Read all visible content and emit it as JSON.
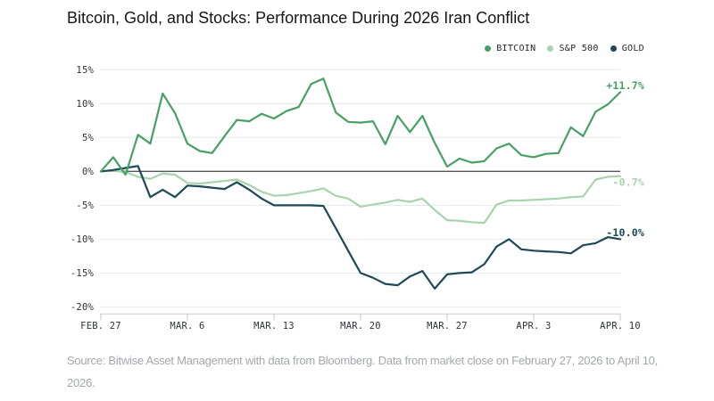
{
  "title": "Bitcoin, Gold, and Stocks: Performance During 2026 Iran Conflict",
  "legend": {
    "items": [
      {
        "label": "BITCOIN",
        "color": "#47a065"
      },
      {
        "label": "S&P 500",
        "color": "#a9d3ae"
      },
      {
        "label": "GOLD",
        "color": "#1e4956"
      }
    ]
  },
  "source_note": "Source: Bitwise Asset Management with data from Bloomberg. Data from market close on February 27, 2026 to April 10, 2026.",
  "chart_data": {
    "type": "line",
    "title": "Bitcoin, Gold, and Stocks: Performance During 2026 Iran Conflict",
    "xlabel": "",
    "ylabel": "",
    "ylim": [
      -20,
      15
    ],
    "grid": true,
    "legend_position": "top-right",
    "x": [
      "FEB 27",
      "FEB 28",
      "MAR 1",
      "MAR 2",
      "MAR 3",
      "MAR 4",
      "MAR 5",
      "MAR 6",
      "MAR 7",
      "MAR 8",
      "MAR 9",
      "MAR 10",
      "MAR 11",
      "MAR 12",
      "MAR 13",
      "MAR 14",
      "MAR 15",
      "MAR 16",
      "MAR 17",
      "MAR 18",
      "MAR 19",
      "MAR 20",
      "MAR 21",
      "MAR 22",
      "MAR 23",
      "MAR 24",
      "MAR 25",
      "MAR 26",
      "MAR 27",
      "MAR 28",
      "MAR 29",
      "MAR 30",
      "MAR 31",
      "APR 1",
      "APR 2",
      "APR 3",
      "APR 4",
      "APR 5",
      "APR 6",
      "APR 7",
      "APR 8",
      "APR 9",
      "APR 10"
    ],
    "x_tick_labels": [
      "FEB. 27",
      "MAR. 6",
      "MAR. 13",
      "MAR. 20",
      "MAR. 27",
      "APR. 3",
      "APR. 10"
    ],
    "y_ticks": [
      15,
      10,
      5,
      0,
      -5,
      -10,
      -15,
      -20
    ],
    "y_tick_labels": [
      "15%",
      "10%",
      "5%",
      "0%",
      "-5%",
      "-10%",
      "-15%",
      "-20%"
    ],
    "series": [
      {
        "name": "BITCOIN",
        "color": "#47a065",
        "end_label": "+11.7%",
        "values": [
          0.0,
          2.1,
          -0.5,
          5.4,
          4.1,
          11.5,
          8.6,
          4.1,
          3.0,
          2.7,
          5.2,
          7.6,
          7.4,
          8.5,
          7.8,
          8.9,
          9.5,
          12.9,
          13.7,
          8.7,
          7.3,
          7.2,
          7.4,
          4.0,
          8.2,
          5.8,
          8.2,
          4.2,
          0.7,
          1.9,
          1.3,
          1.5,
          3.4,
          4.1,
          2.4,
          2.1,
          2.6,
          2.7,
          6.5,
          5.2,
          8.8,
          9.9,
          11.7
        ]
      },
      {
        "name": "S&P 500",
        "color": "#a9d3ae",
        "end_label": "-0.7%",
        "values": [
          0.0,
          0.1,
          -0.1,
          -0.8,
          -1.1,
          -0.3,
          -0.5,
          -1.7,
          -1.8,
          -1.6,
          -1.4,
          -1.2,
          -2.0,
          -3.0,
          -3.6,
          -3.5,
          -3.2,
          -2.9,
          -2.5,
          -3.6,
          -4.0,
          -5.2,
          -4.9,
          -4.6,
          -4.2,
          -4.5,
          -4.0,
          -5.7,
          -7.2,
          -7.3,
          -7.5,
          -7.6,
          -4.9,
          -4.3,
          -4.3,
          -4.2,
          -4.1,
          -4.0,
          -3.8,
          -3.7,
          -1.2,
          -0.8,
          -0.7
        ]
      },
      {
        "name": "GOLD",
        "color": "#1e4956",
        "end_label": "-10.0%",
        "values": [
          0.0,
          0.2,
          0.5,
          0.8,
          -3.8,
          -2.7,
          -3.8,
          -2.1,
          -2.2,
          -2.4,
          -2.6,
          -1.6,
          -2.7,
          -4.0,
          -5.0,
          -5.0,
          -5.0,
          -5.0,
          -5.1,
          -8.4,
          -11.7,
          -15.0,
          -15.7,
          -16.6,
          -16.8,
          -15.5,
          -14.7,
          -17.3,
          -15.2,
          -15.0,
          -14.9,
          -13.7,
          -11.1,
          -10.0,
          -11.5,
          -11.7,
          -11.8,
          -11.9,
          -12.1,
          -10.9,
          -10.6,
          -9.7,
          -10.0
        ]
      }
    ]
  }
}
